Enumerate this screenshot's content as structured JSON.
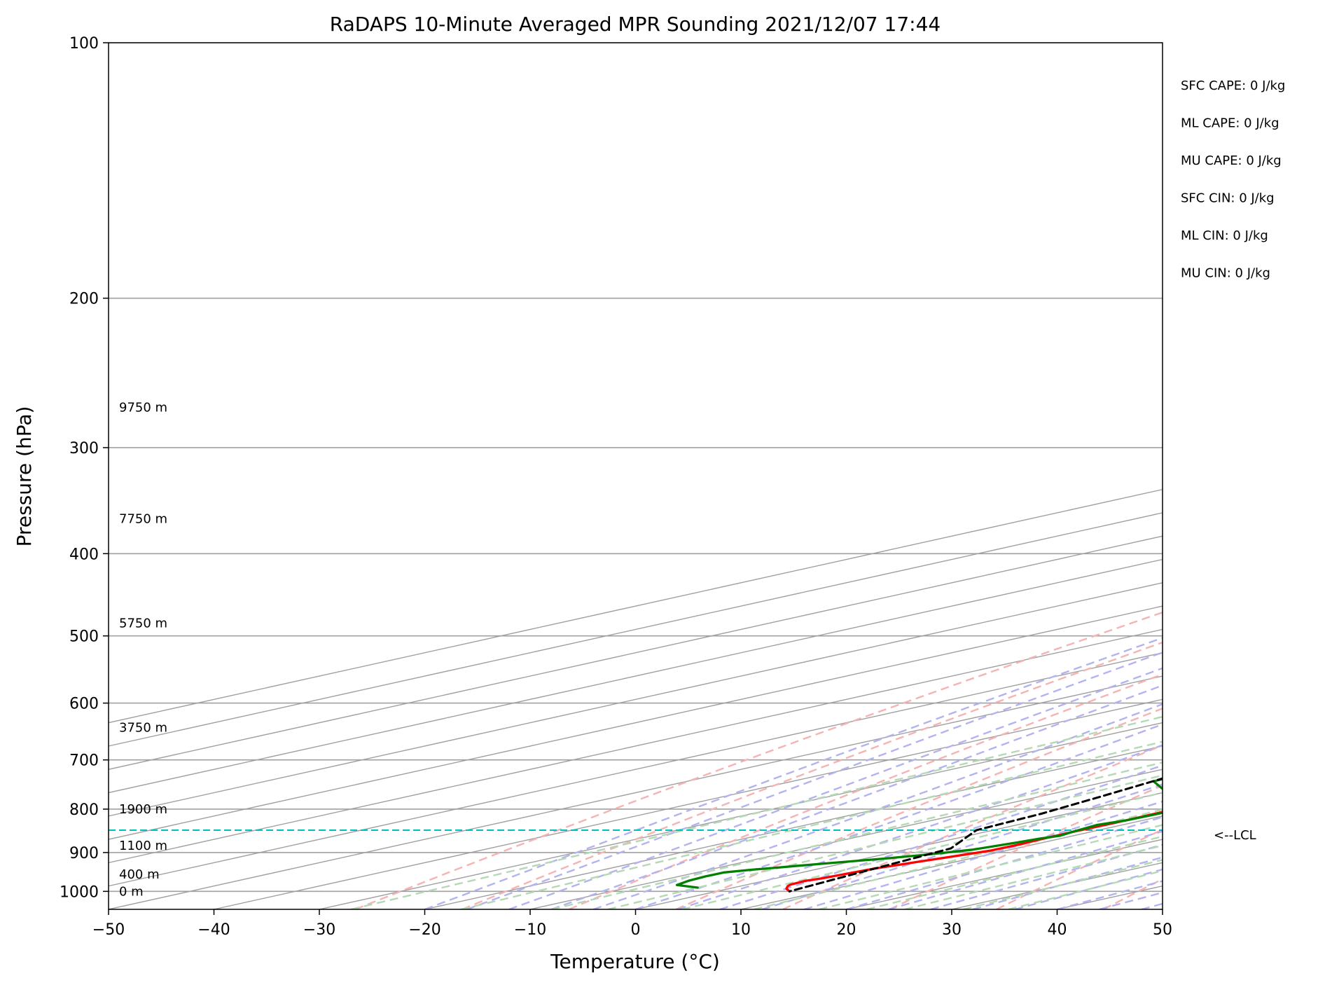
{
  "chart_data": {
    "type": "line",
    "title": "RaDAPS 10-Minute Averaged MPR Sounding 2021/12/07 17:44",
    "xlabel": "Temperature (°C)",
    "ylabel": "Pressure (hPa)",
    "xlim": [
      -50,
      50
    ],
    "ylim": [
      1050,
      100
    ],
    "y_scale": "log",
    "x_ticks": [
      -50,
      -40,
      -30,
      -20,
      -10,
      0,
      10,
      20,
      30,
      40,
      50
    ],
    "x_tick_labels": [
      "−50",
      "−40",
      "−30",
      "−20",
      "−10",
      "0",
      "10",
      "20",
      "30",
      "40",
      "50"
    ],
    "y_ticks": [
      100,
      200,
      300,
      400,
      500,
      600,
      700,
      800,
      900,
      1000
    ],
    "y_tick_labels": [
      "100",
      "200",
      "300",
      "400",
      "500",
      "600",
      "700",
      "800",
      "900",
      "1000"
    ],
    "grid": true,
    "skew": true,
    "series": [
      {
        "color": "#ff0000",
        "points": [
          [
            -22.7,
            265
          ],
          [
            -21.5,
            275
          ],
          [
            -20.3,
            285
          ],
          [
            -19.6,
            295
          ],
          [
            -18.8,
            305
          ],
          [
            -17.6,
            320
          ],
          [
            -16.7,
            330
          ],
          [
            -15.2,
            343
          ],
          [
            -13.9,
            358
          ],
          [
            -12.8,
            375
          ],
          [
            -10.8,
            400
          ],
          [
            -10.2,
            412
          ],
          [
            -9.3,
            425
          ],
          [
            -8.5,
            440
          ],
          [
            -7.5,
            455
          ],
          [
            -6.9,
            470
          ],
          [
            -5.6,
            490
          ],
          [
            -3.8,
            512
          ],
          [
            -2.0,
            535
          ],
          [
            -0.6,
            560
          ],
          [
            0.8,
            585
          ],
          [
            2.0,
            610
          ],
          [
            3.3,
            635
          ],
          [
            4.5,
            660
          ],
          [
            5.6,
            685
          ],
          [
            6.1,
            700
          ],
          [
            6.2,
            710
          ],
          [
            6.7,
            730
          ],
          [
            7.2,
            750
          ],
          [
            7.6,
            770
          ],
          [
            8.2,
            790
          ],
          [
            8.3,
            810
          ],
          [
            8.4,
            830
          ],
          [
            8.3,
            850
          ],
          [
            8.4,
            870
          ],
          [
            8.6,
            880
          ],
          [
            8.5,
            895
          ],
          [
            7.4,
            910
          ],
          [
            6.3,
            925
          ],
          [
            5.2,
            940
          ],
          [
            4.9,
            950
          ],
          [
            4.4,
            965
          ],
          [
            3.9,
            972
          ],
          [
            4.1,
            982
          ],
          [
            4.5,
            986
          ],
          [
            5.5,
            993
          ],
          [
            6.9,
            1000
          ]
        ]
      },
      {
        "color": "#008000",
        "points": [
          [
            -50,
            287
          ],
          [
            -46.2,
            292
          ],
          [
            -42.3,
            301
          ],
          [
            -41.2,
            305
          ],
          [
            -39.6,
            311
          ],
          [
            -38.1,
            320
          ],
          [
            -37.6,
            328
          ],
          [
            -37.1,
            339
          ],
          [
            -33.9,
            353
          ],
          [
            -32.1,
            365
          ],
          [
            -32.2,
            375
          ],
          [
            -30.3,
            385
          ],
          [
            -29.8,
            392
          ],
          [
            -29.5,
            402
          ],
          [
            -29.1,
            410
          ],
          [
            -28.6,
            420
          ],
          [
            -27.2,
            431
          ],
          [
            -26.3,
            445
          ],
          [
            -25.4,
            460
          ],
          [
            -24.6,
            476
          ],
          [
            -24.3,
            487
          ],
          [
            -23.9,
            498
          ],
          [
            -23.1,
            507
          ],
          [
            -22.7,
            518
          ],
          [
            -22.7,
            530
          ],
          [
            -20.3,
            545
          ],
          [
            -16.5,
            567
          ],
          [
            -14.0,
            586
          ],
          [
            -12.3,
            605
          ],
          [
            -11.4,
            630
          ],
          [
            -10.7,
            655
          ],
          [
            -10.2,
            680
          ],
          [
            -9.1,
            695
          ],
          [
            -7.1,
            712
          ],
          [
            -6.1,
            730
          ],
          [
            -5.7,
            742
          ],
          [
            -1.7,
            757
          ],
          [
            4.3,
            770
          ],
          [
            7.5,
            780
          ],
          [
            8.4,
            795
          ],
          [
            8.6,
            810
          ],
          [
            8.4,
            825
          ],
          [
            7.6,
            835
          ],
          [
            8.2,
            850
          ],
          [
            8.7,
            860
          ],
          [
            8.0,
            867
          ],
          [
            7.5,
            876
          ],
          [
            6.4,
            893
          ],
          [
            4.0,
            906
          ],
          [
            1.8,
            915
          ],
          [
            -1.9,
            928
          ],
          [
            -4.3,
            937
          ],
          [
            -6.0,
            943
          ],
          [
            -7.4,
            950
          ],
          [
            -7.5,
            960
          ],
          [
            -7.2,
            972
          ],
          [
            -6.5,
            983
          ],
          [
            -3.4,
            990
          ]
        ]
      },
      {
        "color": "#000000",
        "dashed": true,
        "points": [
          [
            -49.3,
            265
          ],
          [
            -44.5,
            291
          ],
          [
            -40.0,
            320
          ],
          [
            -36.0,
            350
          ],
          [
            -32.5,
            380
          ],
          [
            -29.0,
            412
          ],
          [
            -25.9,
            443
          ],
          [
            -22.9,
            475
          ],
          [
            -20.0,
            507
          ],
          [
            -17.6,
            538
          ],
          [
            -15.6,
            570
          ],
          [
            -13.6,
            600
          ],
          [
            -11.7,
            635
          ],
          [
            -9.5,
            670
          ],
          [
            -7.7,
            705
          ],
          [
            -5.9,
            740
          ],
          [
            -4.1,
            775
          ],
          [
            -2.5,
            810
          ],
          [
            -1.6,
            847
          ],
          [
            3.8,
            890
          ],
          [
            5.5,
            950
          ],
          [
            6.9,
            1000
          ]
        ]
      }
    ],
    "lcl_pressure": 847,
    "lcl_label": "<--LCL",
    "height_labels": [
      {
        "label": "9750 m",
        "pressure": 269
      },
      {
        "label": "7750 m",
        "pressure": 364
      },
      {
        "label": "5750 m",
        "pressure": 483
      },
      {
        "label": "3750 m",
        "pressure": 641
      },
      {
        "label": "1900 m",
        "pressure": 800
      },
      {
        "label": "1100 m",
        "pressure": 883
      },
      {
        "label": "400 m",
        "pressure": 955
      },
      {
        "label": "0 m",
        "pressure": 1000
      }
    ],
    "annotations": [
      "SFC CAPE: 0 J/kg",
      "ML CAPE: 0 J/kg",
      "MU CAPE: 0 J/kg",
      "SFC CIN: 0 J/kg",
      "ML CIN: 0 J/kg",
      "MU CIN: 0 J/kg"
    ],
    "background_lines": {
      "isotherm_color": "#a0a0a0",
      "dry_adiabat_color": "#f5b3b3",
      "moist_adiabat_color": "#b3b3f0",
      "mixing_ratio_color": "#b5d9b5",
      "lcl_color": "#00bfbf"
    }
  }
}
